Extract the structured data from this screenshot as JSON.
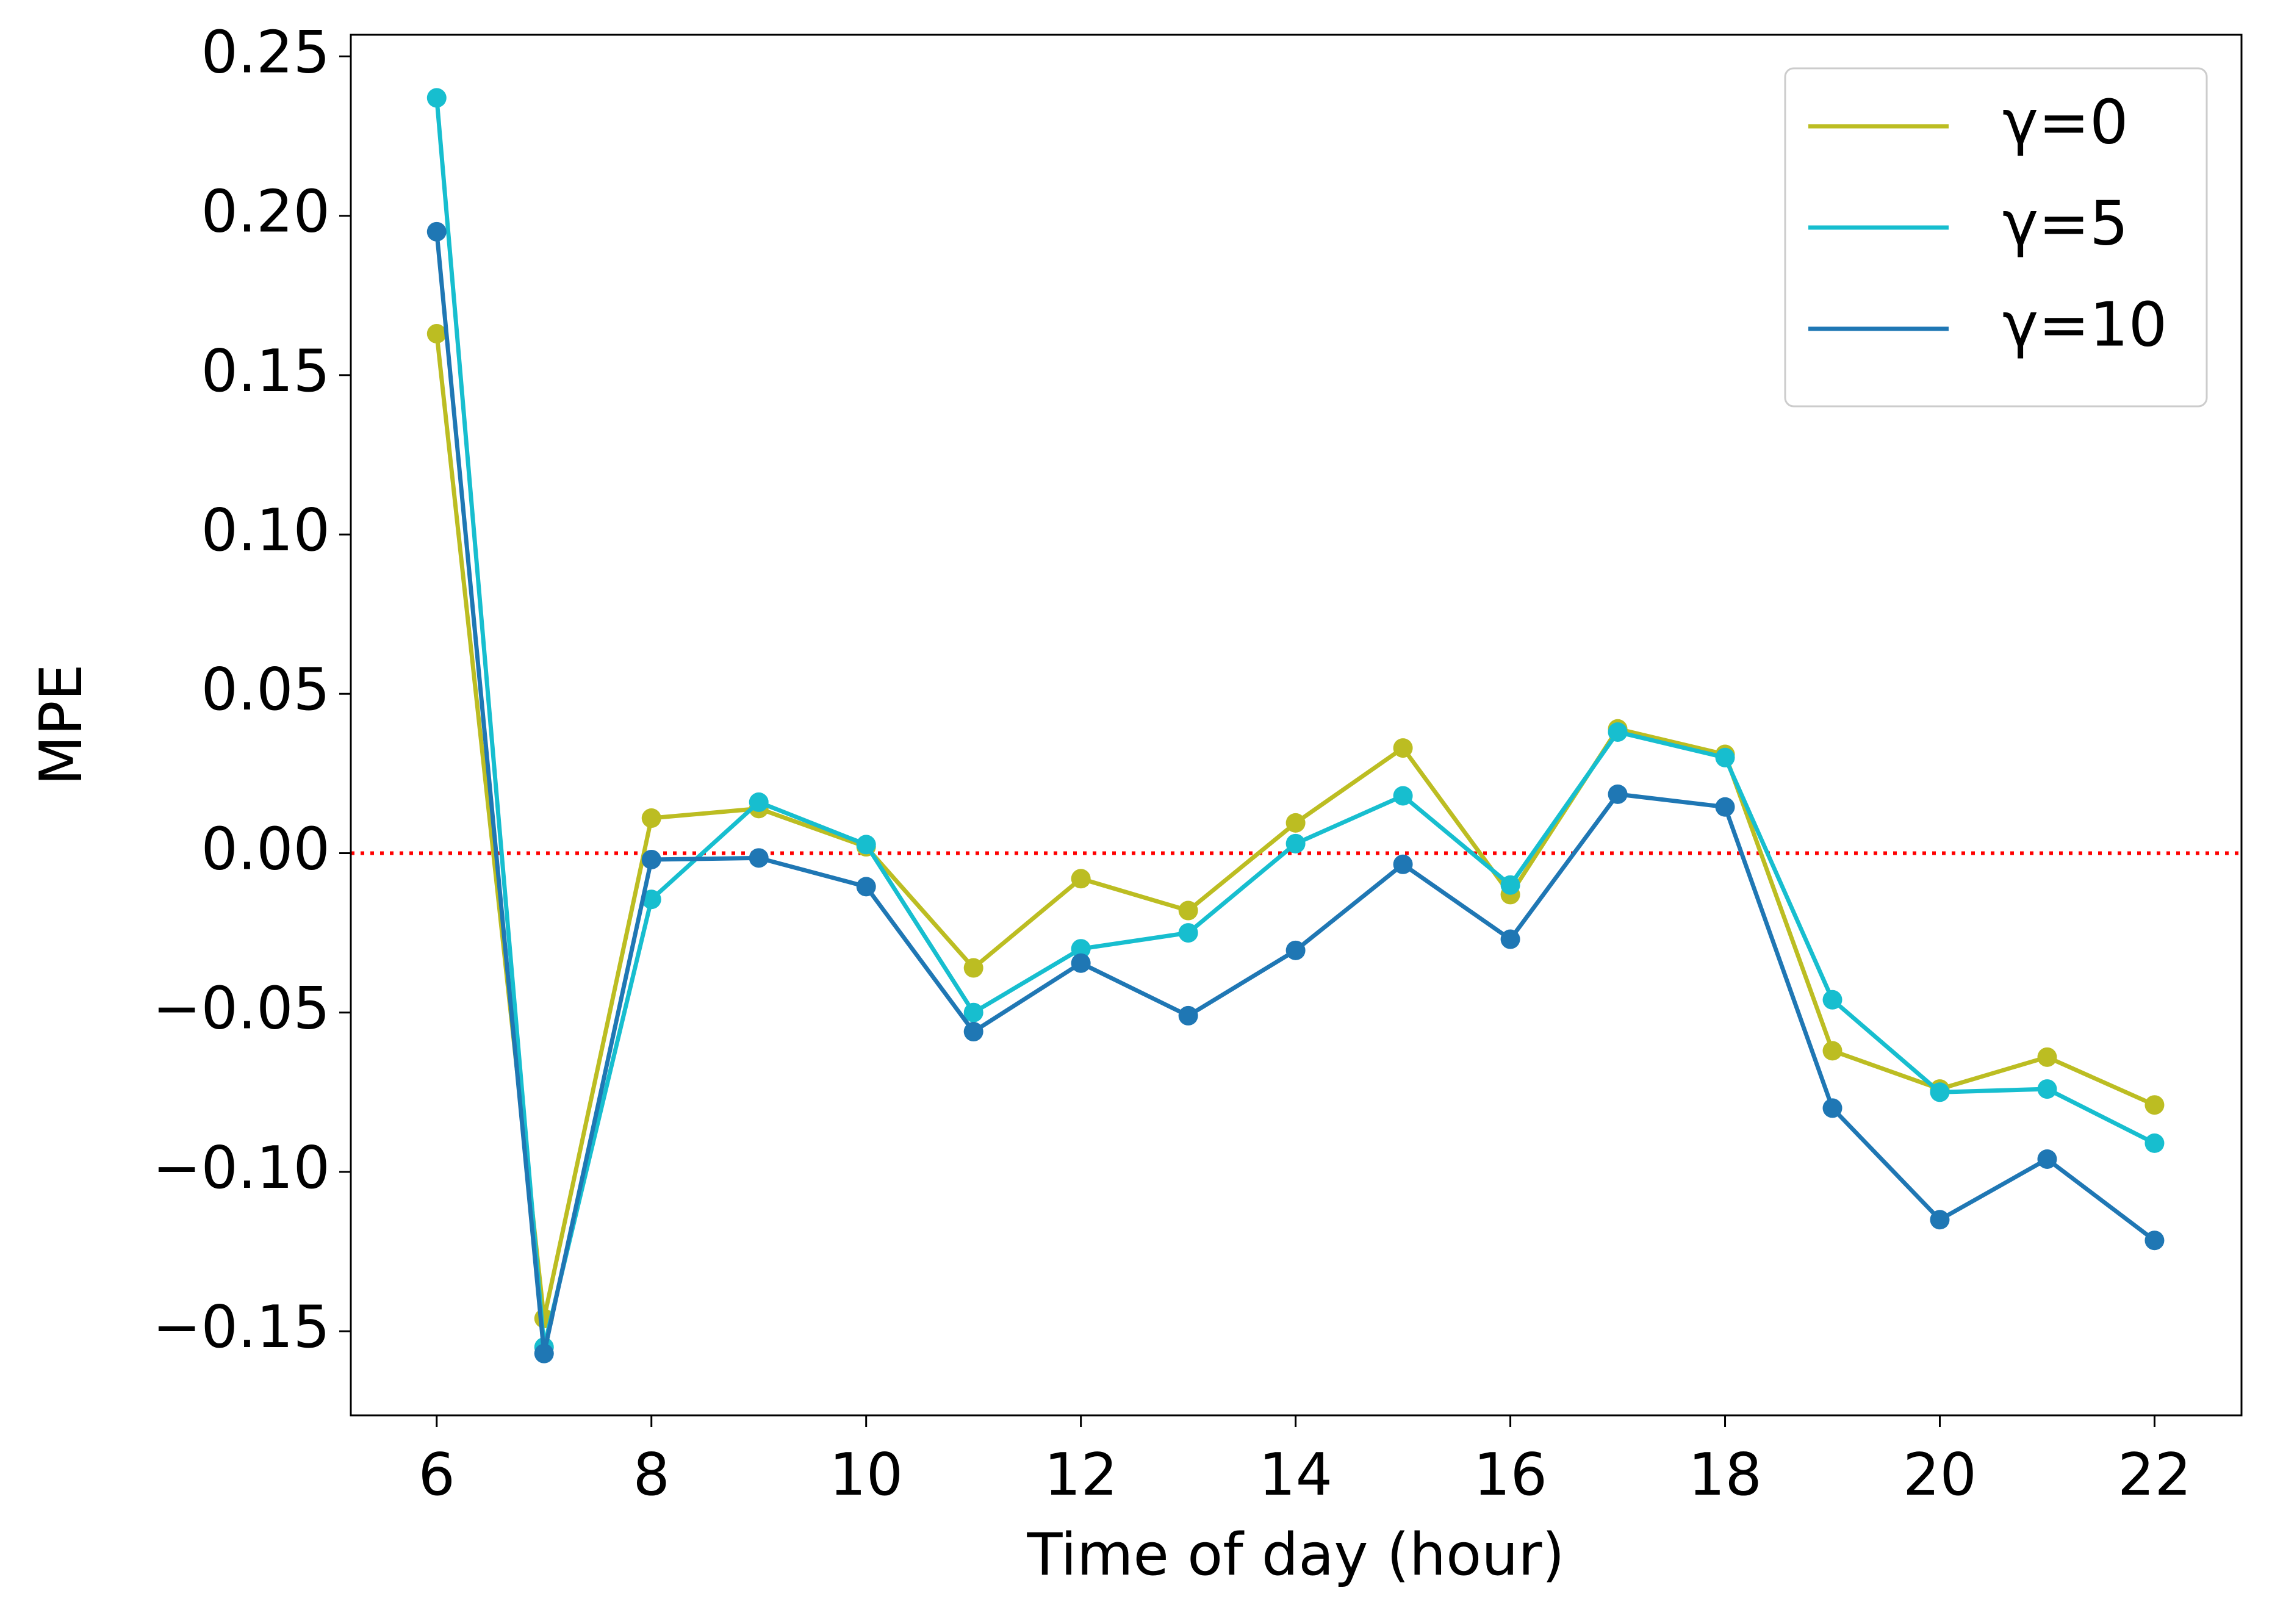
{
  "chart_data": {
    "type": "line",
    "x_label": "Time of day (hour)",
    "y_label": "MPE",
    "x": [
      6,
      7,
      8,
      9,
      10,
      11,
      12,
      13,
      14,
      15,
      16,
      17,
      18,
      19,
      20,
      21,
      22
    ],
    "series": [
      {
        "name": "γ=0",
        "color": "#bcbd22",
        "values": [
          0.163,
          -0.146,
          0.011,
          0.014,
          0.002,
          -0.036,
          -0.008,
          -0.018,
          0.0095,
          0.033,
          -0.013,
          0.039,
          0.031,
          -0.062,
          -0.074,
          -0.064,
          -0.079
        ]
      },
      {
        "name": "γ=5",
        "color": "#17becf",
        "values": [
          0.237,
          -0.155,
          -0.0145,
          0.016,
          0.0027,
          -0.05,
          -0.03,
          -0.025,
          0.003,
          0.018,
          -0.01,
          0.038,
          0.03,
          -0.046,
          -0.075,
          -0.074,
          -0.091
        ]
      },
      {
        "name": "γ=10",
        "color": "#1f77b4",
        "values": [
          0.195,
          -0.157,
          -0.002,
          -0.0015,
          -0.0105,
          -0.056,
          -0.0345,
          -0.051,
          -0.0305,
          -0.0035,
          -0.027,
          0.0185,
          0.0145,
          -0.08,
          -0.115,
          -0.096,
          -0.1215
        ]
      }
    ],
    "xlim": [
      5.2,
      22.81
    ],
    "ylim": [
      -0.1764,
      0.2568
    ],
    "xticks": [
      6,
      8,
      10,
      12,
      14,
      16,
      18,
      20,
      22
    ],
    "yticks": [
      {
        "value": -0.15,
        "label": "−0.15"
      },
      {
        "value": -0.1,
        "label": "−0.10"
      },
      {
        "value": -0.05,
        "label": "−0.05"
      },
      {
        "value": 0,
        "label": "0.00"
      },
      0.05,
      {
        "value": 0.1,
        "label": "0.10"
      },
      0.15,
      {
        "value": 0.2,
        "label": "0.20"
      },
      0.25
    ],
    "reference_line": {
      "value": 0,
      "color": "#ff0000",
      "style": "dotted"
    },
    "legend": "upper right",
    "grid": false,
    "markers": true
  }
}
